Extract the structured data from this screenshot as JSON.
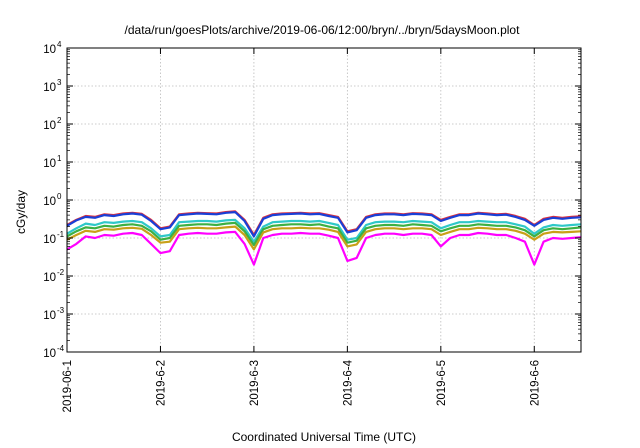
{
  "chart_data": {
    "type": "line",
    "title": "/data/run/goesPlots/archive/2019-06-06/12:00/bryn/../bryn/5daysMoon.plot",
    "xlabel": "Coordinated Universal Time (UTC)",
    "ylabel": "cGy/day",
    "yscale": "log",
    "ylim": [
      0.0001,
      10000
    ],
    "y_ticks": [
      {
        "base": "10",
        "exp": "-4"
      },
      {
        "base": "10",
        "exp": "-3"
      },
      {
        "base": "10",
        "exp": "-2"
      },
      {
        "base": "10",
        "exp": "-1"
      },
      {
        "base": "10",
        "exp": "0"
      },
      {
        "base": "10",
        "exp": "1"
      },
      {
        "base": "10",
        "exp": "2"
      },
      {
        "base": "10",
        "exp": "3"
      },
      {
        "base": "10",
        "exp": "4"
      }
    ],
    "xlim": [
      "2019-06-01 00:00",
      "2019-06-06 12:00"
    ],
    "x_ticks": [
      "2019-06-1",
      "2019-6-2",
      "2019-6-3",
      "2019-6-4",
      "2019-6-5",
      "2019-6-6"
    ],
    "grid": true,
    "x": [
      0.0,
      0.1,
      0.2,
      0.3,
      0.4,
      0.5,
      0.6,
      0.7,
      0.8,
      0.9,
      1.0,
      1.1,
      1.2,
      1.3,
      1.4,
      1.5,
      1.6,
      1.7,
      1.8,
      1.9,
      2.0,
      2.1,
      2.2,
      2.3,
      2.4,
      2.5,
      2.6,
      2.7,
      2.8,
      2.9,
      3.0,
      3.1,
      3.2,
      3.3,
      3.4,
      3.5,
      3.6,
      3.7,
      3.8,
      3.9,
      4.0,
      4.1,
      4.2,
      4.3,
      4.4,
      4.5,
      4.6,
      4.7,
      4.8,
      4.9,
      5.0,
      5.1,
      5.2,
      5.3,
      5.4,
      5.5
    ],
    "x_units": "days since 2019-06-01 00:00 UTC",
    "series": [
      {
        "color": "#e0303c",
        "values": [
          0.22,
          0.3,
          0.38,
          0.36,
          0.42,
          0.4,
          0.44,
          0.46,
          0.43,
          0.3,
          0.18,
          0.2,
          0.42,
          0.44,
          0.46,
          0.45,
          0.44,
          0.48,
          0.5,
          0.3,
          0.12,
          0.34,
          0.42,
          0.44,
          0.45,
          0.46,
          0.44,
          0.45,
          0.4,
          0.36,
          0.15,
          0.17,
          0.36,
          0.42,
          0.44,
          0.44,
          0.42,
          0.45,
          0.44,
          0.42,
          0.3,
          0.36,
          0.42,
          0.42,
          0.46,
          0.44,
          0.42,
          0.43,
          0.38,
          0.32,
          0.22,
          0.32,
          0.36,
          0.34,
          0.36,
          0.37
        ]
      },
      {
        "color": "#1a3fd6",
        "values": [
          0.21,
          0.29,
          0.36,
          0.34,
          0.4,
          0.38,
          0.42,
          0.44,
          0.41,
          0.28,
          0.17,
          0.19,
          0.4,
          0.42,
          0.44,
          0.43,
          0.42,
          0.46,
          0.48,
          0.28,
          0.11,
          0.32,
          0.4,
          0.42,
          0.43,
          0.44,
          0.42,
          0.43,
          0.38,
          0.34,
          0.14,
          0.16,
          0.34,
          0.4,
          0.42,
          0.42,
          0.4,
          0.43,
          0.42,
          0.4,
          0.28,
          0.34,
          0.4,
          0.4,
          0.44,
          0.42,
          0.4,
          0.41,
          0.36,
          0.3,
          0.21,
          0.3,
          0.34,
          0.32,
          0.34,
          0.35
        ]
      },
      {
        "color": "#2ec8c8",
        "values": [
          0.13,
          0.18,
          0.24,
          0.22,
          0.26,
          0.25,
          0.27,
          0.28,
          0.26,
          0.18,
          0.11,
          0.12,
          0.26,
          0.27,
          0.28,
          0.28,
          0.27,
          0.29,
          0.3,
          0.18,
          0.08,
          0.2,
          0.26,
          0.27,
          0.28,
          0.28,
          0.27,
          0.28,
          0.25,
          0.22,
          0.09,
          0.1,
          0.22,
          0.26,
          0.27,
          0.27,
          0.26,
          0.28,
          0.27,
          0.26,
          0.18,
          0.22,
          0.26,
          0.26,
          0.28,
          0.27,
          0.26,
          0.26,
          0.23,
          0.2,
          0.13,
          0.19,
          0.22,
          0.21,
          0.22,
          0.23
        ]
      },
      {
        "color": "#3cb043",
        "values": [
          0.11,
          0.15,
          0.19,
          0.18,
          0.21,
          0.2,
          0.22,
          0.23,
          0.21,
          0.15,
          0.09,
          0.1,
          0.21,
          0.22,
          0.23,
          0.23,
          0.22,
          0.24,
          0.25,
          0.15,
          0.065,
          0.17,
          0.21,
          0.22,
          0.23,
          0.23,
          0.22,
          0.23,
          0.2,
          0.18,
          0.075,
          0.085,
          0.18,
          0.21,
          0.22,
          0.22,
          0.21,
          0.23,
          0.22,
          0.21,
          0.15,
          0.18,
          0.21,
          0.21,
          0.23,
          0.22,
          0.21,
          0.21,
          0.19,
          0.16,
          0.11,
          0.16,
          0.18,
          0.17,
          0.18,
          0.19
        ]
      },
      {
        "color": "#c8a018",
        "values": [
          0.09,
          0.12,
          0.155,
          0.145,
          0.17,
          0.165,
          0.18,
          0.185,
          0.175,
          0.12,
          0.075,
          0.08,
          0.17,
          0.18,
          0.185,
          0.18,
          0.18,
          0.19,
          0.2,
          0.12,
          0.05,
          0.14,
          0.17,
          0.18,
          0.18,
          0.185,
          0.18,
          0.18,
          0.165,
          0.145,
          0.06,
          0.068,
          0.145,
          0.17,
          0.18,
          0.18,
          0.17,
          0.18,
          0.18,
          0.17,
          0.12,
          0.145,
          0.17,
          0.17,
          0.185,
          0.18,
          0.17,
          0.17,
          0.155,
          0.13,
          0.09,
          0.13,
          0.145,
          0.14,
          0.145,
          0.15
        ]
      },
      {
        "color": "#ff00ff",
        "values": [
          0.05,
          0.07,
          0.11,
          0.1,
          0.12,
          0.115,
          0.13,
          0.135,
          0.12,
          0.07,
          0.04,
          0.045,
          0.12,
          0.13,
          0.135,
          0.13,
          0.13,
          0.14,
          0.145,
          0.07,
          0.02,
          0.1,
          0.12,
          0.13,
          0.13,
          0.135,
          0.13,
          0.13,
          0.115,
          0.1,
          0.025,
          0.03,
          0.1,
          0.12,
          0.13,
          0.13,
          0.12,
          0.13,
          0.13,
          0.12,
          0.06,
          0.1,
          0.12,
          0.12,
          0.135,
          0.13,
          0.12,
          0.12,
          0.1,
          0.08,
          0.02,
          0.08,
          0.1,
          0.095,
          0.1,
          0.105
        ]
      }
    ]
  }
}
